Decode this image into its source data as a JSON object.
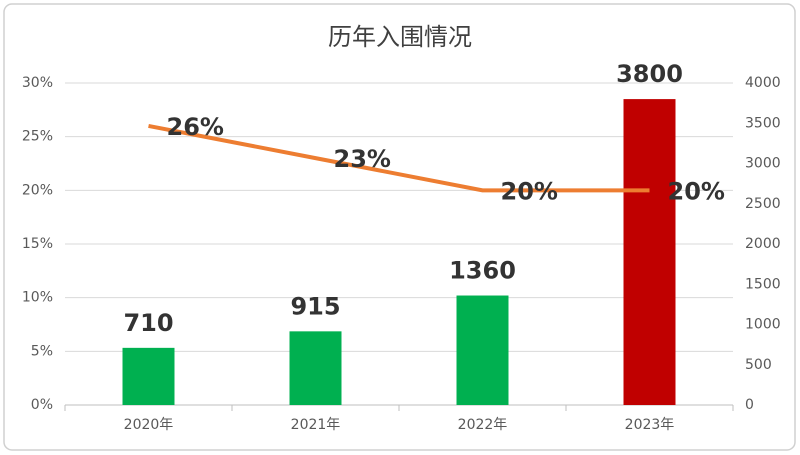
{
  "chart_data": {
    "type": "combo",
    "title": "历年入围情况",
    "categories": [
      "2020年",
      "2021年",
      "2022年",
      "2023年"
    ],
    "series": [
      {
        "type": "bar",
        "axis": "y2",
        "colors": [
          "#00b050",
          "#00b050",
          "#00b050",
          "#c00000"
        ],
        "values": [
          710,
          915,
          1360,
          3800
        ]
      },
      {
        "type": "line",
        "axis": "y",
        "color": "#ed7d31",
        "values": [
          26,
          23,
          20,
          20
        ],
        "value_labels": [
          "26%",
          "23%",
          "20%",
          "20%"
        ]
      }
    ],
    "ylim": [
      0,
      30
    ],
    "yticks": [
      {
        "value": 0,
        "label": "0%"
      },
      {
        "value": 5,
        "label": "5%"
      },
      {
        "value": 10,
        "label": "10%"
      },
      {
        "value": 15,
        "label": "15%"
      },
      {
        "value": 20,
        "label": "20%"
      },
      {
        "value": 25,
        "label": "25%"
      },
      {
        "value": 30,
        "label": "30%"
      }
    ],
    "y2lim": [
      0,
      4000
    ],
    "y2ticks": [
      0,
      500,
      1000,
      1500,
      2000,
      2500,
      3000,
      3500,
      4000
    ],
    "grid": true
  }
}
